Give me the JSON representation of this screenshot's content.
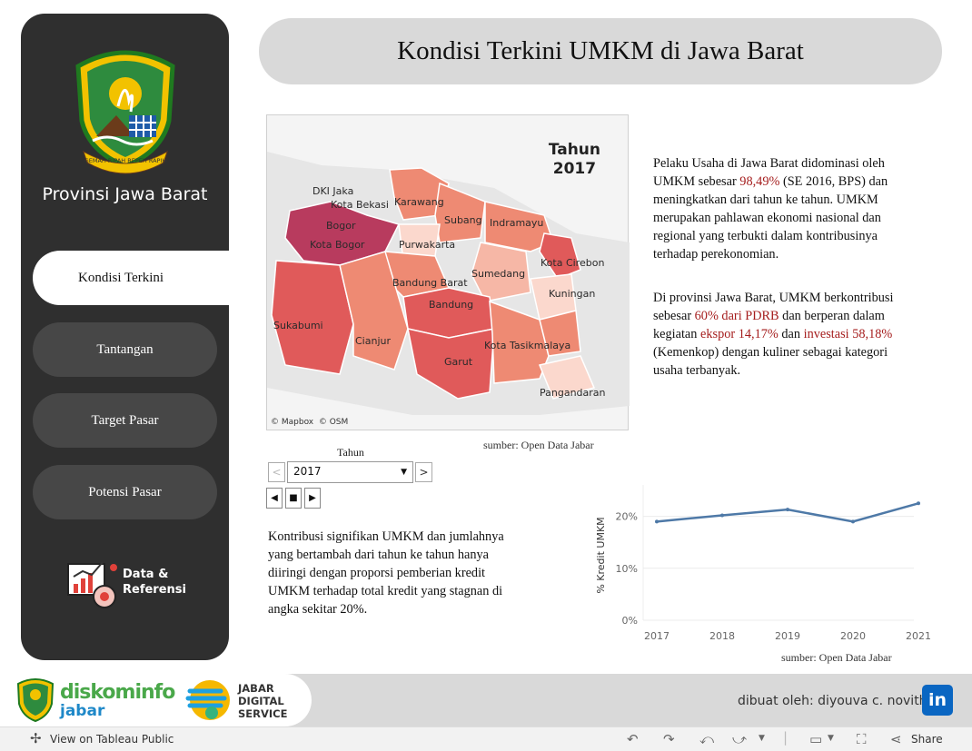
{
  "sidebar": {
    "province_title": "Provinsi Jawa Barat",
    "logo_motto": "GEMAH RIPAH REPEH RAPIH",
    "nav": [
      "Kondisi Terkini",
      "Tantangan",
      "Target Pasar",
      "Potensi Pasar"
    ],
    "data_ref_label_1": "Data &",
    "data_ref_label_2": "Referensi"
  },
  "header": {
    "title": "Kondisi Terkini UMKM di Jawa Barat"
  },
  "map": {
    "year_title": "Tahun",
    "year_value": "2017",
    "attribution_mapbox": "© Mapbox",
    "attribution_osm": "© OSM",
    "source": "sumber: Open Data Jabar",
    "background_labels": [
      "DKI Jaka",
      "Kota Bekasi"
    ],
    "region_labels": [
      "Karawang",
      "Subang",
      "Indramayu",
      "Bogor",
      "Kota Bogor",
      "Purwakarta",
      "Kota Cirebon",
      "Sumedang",
      "Kuningan",
      "Bandung Barat",
      "Bandung",
      "Sukabumi",
      "Cianjur",
      "Kota Tasikmalaya",
      "Garut",
      "Pangandaran"
    ],
    "colors": {
      "darkest": "#b83b5e",
      "dark": "#e05a5a",
      "mid": "#ee8a73",
      "light": "#f6b7a6",
      "lightest": "#fbd8cd"
    }
  },
  "year_control": {
    "label": "Tahun",
    "selected": "2017",
    "prev": "<",
    "next": ">",
    "play_back": "◀",
    "stop": "■",
    "play_fwd": "▶"
  },
  "paragraph1": {
    "t1": "Pelaku Usaha di Jawa Barat didominasi oleh UMKM sebesar ",
    "h1": "98,49%",
    "t2": " (SE 2016, BPS) dan meningkatkan dari tahun ke tahun. UMKM merupakan pahlawan ekonomi nasional dan regional yang terbukti dalam kontribusinya terhadap perekonomian."
  },
  "paragraph2": {
    "t1": "Di provinsi Jawa Barat, UMKM berkontribusi sebesar ",
    "h1": "60% dari PDRB",
    "t2": " dan berperan dalam kegiatan ",
    "h2": "ekspor 14,17%",
    "t3": " dan ",
    "h3": "investasi 58,18%",
    "t4": " (Kemenkop) dengan kuliner sebagai kategori usaha terbanyak."
  },
  "paragraph3": {
    "text": "Kontribusi signifikan UMKM dan jumlahnya yang bertambah dari tahun ke tahun hanya diiringi dengan proporsi pemberian kredit UMKM terhadap total kredit yang stagnan di angka sekitar 20%."
  },
  "chart_data": {
    "type": "line",
    "x": [
      "2017",
      "2018",
      "2019",
      "2020",
      "2021"
    ],
    "series": [
      {
        "values": [
          19,
          20.2,
          21.3,
          19,
          22.5
        ]
      }
    ],
    "ylabel": "% Kredit UMKM",
    "yticks": [
      "0%",
      "10%",
      "20%"
    ],
    "ylim": [
      0,
      25
    ],
    "grid": true,
    "line_color": "#4e79a7",
    "source": "sumber: Open Data Jabar"
  },
  "footer": {
    "credit": "dibuat oleh: diyouva c. novith",
    "linkedin": "in",
    "diskominfo_1": "diskominfo",
    "diskominfo_2": "jabar",
    "jds_1": "JABAR",
    "jds_2": "DIGITAL",
    "jds_3": "SERVICE"
  },
  "toolbar": {
    "view_label": "View on Tableau Public",
    "share_label": "Share"
  }
}
